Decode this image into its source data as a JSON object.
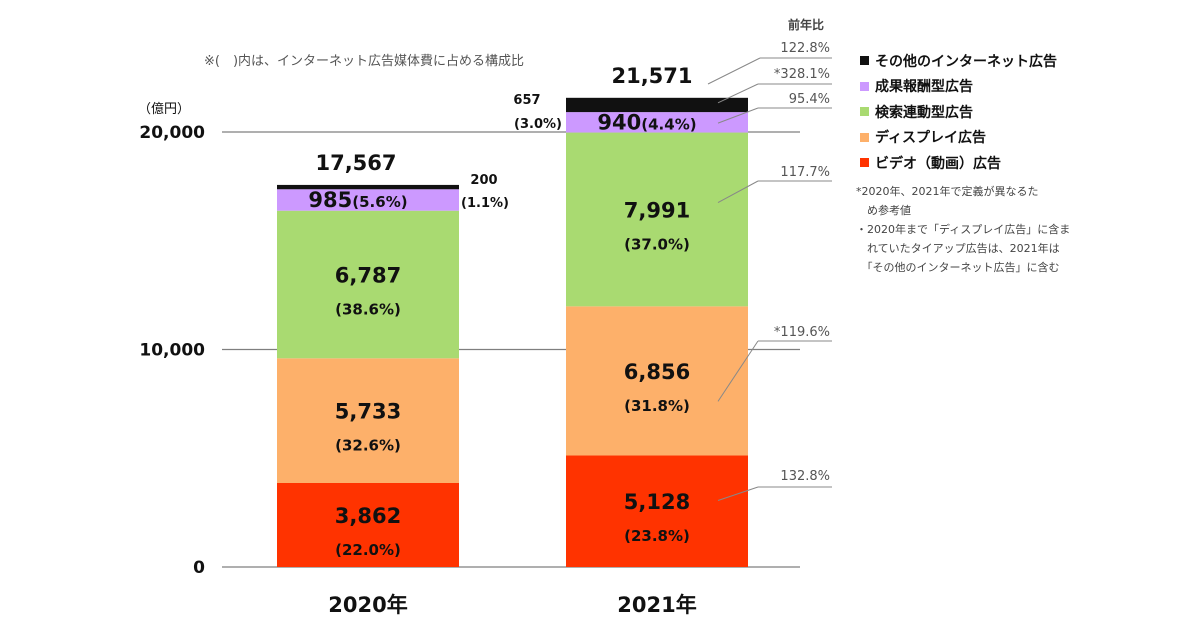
{
  "chart_data": {
    "type": "bar",
    "stacked": true,
    "note_top": "※(　)内は、インターネット広告媒体費に占める構成比",
    "unit_label": "（億円）",
    "yoy_header": "前年比",
    "ylim": [
      0,
      20000
    ],
    "y_ticks": [
      {
        "value": 0,
        "label": "0"
      },
      {
        "value": 10000,
        "label": "10,000"
      },
      {
        "value": 20000,
        "label": "20,000"
      }
    ],
    "categories": [
      "2020年",
      "2021年"
    ],
    "totals": [
      {
        "value": 17567,
        "label": "17,567"
      },
      {
        "value": 21571,
        "label": "21,571"
      }
    ],
    "series": [
      {
        "name": "ビデオ（動画）広告",
        "color": "#ff3300",
        "values": [
          3862,
          5128
        ],
        "value_labels": [
          "3,862",
          "5,128"
        ],
        "share_labels": [
          "(22.0%)",
          "(23.8%)"
        ],
        "yoy": "132.8%"
      },
      {
        "name": "ディスプレイ広告",
        "color": "#fdb06a",
        "values": [
          5733,
          6856
        ],
        "value_labels": [
          "5,733",
          "6,856"
        ],
        "share_labels": [
          "(32.6%)",
          "(31.8%)"
        ],
        "yoy": "*119.6%"
      },
      {
        "name": "検索連動型広告",
        "color": "#a9da71",
        "values": [
          6787,
          7991
        ],
        "value_labels": [
          "6,787",
          "7,991"
        ],
        "share_labels": [
          "(38.6%)",
          "(37.0%)"
        ],
        "yoy": "117.7%"
      },
      {
        "name": "成果報酬型広告",
        "color": "#cc99ff",
        "values": [
          985,
          940
        ],
        "value_labels": [
          "985",
          "940"
        ],
        "share_labels": [
          "(5.6%)",
          "(4.4%)"
        ],
        "yoy": "95.4%"
      },
      {
        "name": "その他のインターネット広告",
        "color": "#111111",
        "values": [
          200,
          657
        ],
        "value_labels": [
          "200",
          "657"
        ],
        "share_labels": [
          "(1.1%)",
          "(3.0%)"
        ],
        "yoy": "*328.1%"
      }
    ],
    "total_yoy": "122.8%",
    "legend_order": [
      4,
      3,
      2,
      1,
      0
    ],
    "notes": [
      "*2020年、2021年で定義が異なるた\n　め参考値",
      "・2020年まで「ディスプレイ広告」に含ま\n　れていたタイアップ広告は、2021年は\n　「その他のインターネット広告」に含む"
    ],
    "grid": true
  }
}
